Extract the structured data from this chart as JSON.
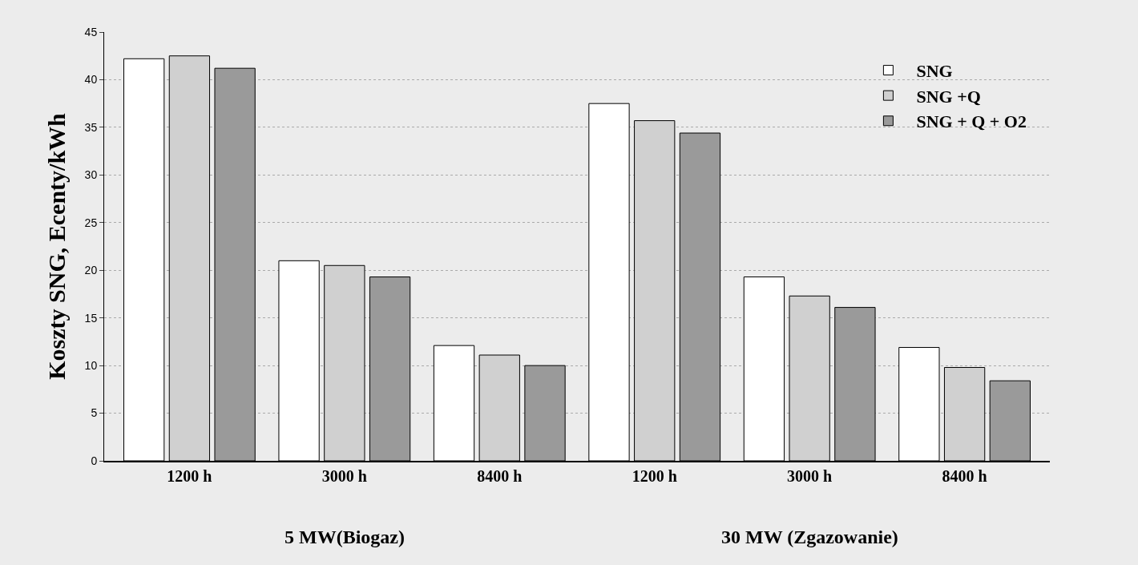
{
  "chart_data": {
    "type": "bar",
    "ylabel": "Koszty SNG, Ecenty/kWh",
    "categories": [
      "1200 h",
      "3000 h",
      "8400 h",
      "1200 h",
      "3000 h",
      "8400 h"
    ],
    "series": [
      {
        "name": "SNG",
        "color": "#ffffff",
        "values": [
          42.2,
          21.0,
          12.1,
          37.5,
          19.3,
          11.9
        ]
      },
      {
        "name": "SNG +Q",
        "color": "#d0d0d0",
        "values": [
          42.5,
          20.5,
          11.1,
          35.7,
          17.3,
          9.8
        ]
      },
      {
        "name": "SNG + Q + O2",
        "color": "#9a9a9a",
        "values": [
          41.2,
          19.3,
          10.0,
          34.4,
          16.1,
          8.4
        ]
      }
    ],
    "ylim": [
      0,
      45
    ],
    "yticks": [
      0,
      5,
      10,
      15,
      20,
      25,
      30,
      35,
      40,
      45
    ],
    "grid": "y",
    "legend": "top right",
    "annotations": [
      "5 MW(Biogaz)",
      "30 MW (Zgazowanie)"
    ]
  }
}
